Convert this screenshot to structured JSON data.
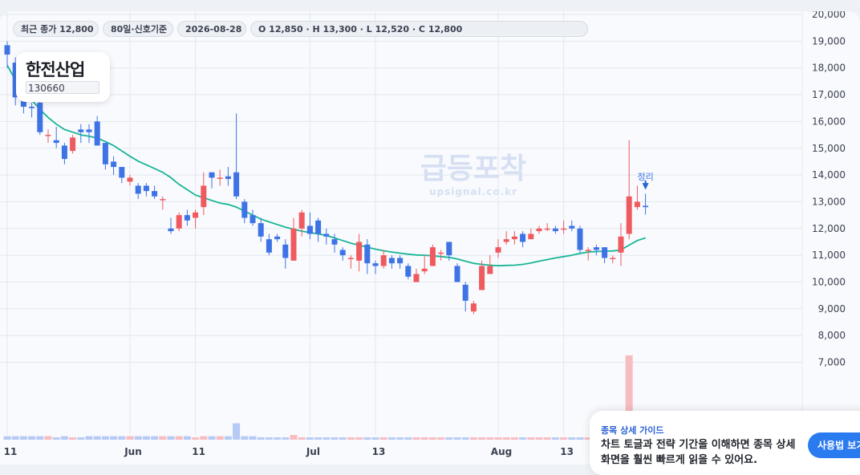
{
  "header": {
    "last_close": "최근 종가 12,800",
    "signal_basis": "80일·신호기준",
    "date": "2026-08-28",
    "ohlc": "O 12,850 · H 13,300 · L 12,520 · C 12,800"
  },
  "stock": {
    "name": "한전산업",
    "code": "130660"
  },
  "watermark": {
    "brand": "급등포착",
    "url": "upsignal.co.kr"
  },
  "annotation": {
    "label": "정리"
  },
  "guide": {
    "title": "종목 상세 가이드",
    "body_line1": "차트 토글과 전략 기간을 이해하면 종목 상세",
    "body_line2": "화면을 훨씬 빠르게 읽을 수 있어요.",
    "button_label": "사용법 보기"
  },
  "colors": {
    "up": "#ef5a5f",
    "down": "#3e73e6",
    "ma": "#19b596",
    "accent": "#2b7bf0"
  },
  "chart_data": {
    "type": "candlestick",
    "x_tick_labels": [
      {
        "index": 0,
        "label": "11"
      },
      {
        "index": 15,
        "label": "Jun"
      },
      {
        "index": 23,
        "label": "11"
      },
      {
        "index": 37,
        "label": "Jul"
      },
      {
        "index": 45,
        "label": "13"
      },
      {
        "index": 60,
        "label": "Aug"
      },
      {
        "index": 68,
        "label": "13"
      }
    ],
    "y_tick_labels": [
      "7,000",
      "8,000",
      "9,000",
      "10,000",
      "11,000",
      "12,000",
      "13,000",
      "14,000",
      "15,000",
      "16,000",
      "17,000",
      "18,000",
      "19,000",
      "20,000"
    ],
    "y_ticks": [
      7000,
      8000,
      9000,
      10000,
      11000,
      12000,
      13000,
      14000,
      15000,
      16000,
      17000,
      18000,
      19000,
      20000
    ],
    "ylim": [
      6200,
      20400
    ],
    "candles": [
      [
        18850,
        18500,
        19000,
        18000
      ],
      [
        18200,
        16900,
        18400,
        16600
      ],
      [
        16950,
        16550,
        17000,
        16300
      ],
      [
        16550,
        16500,
        16700,
        16150
      ],
      [
        16700,
        15600,
        16900,
        15500
      ],
      [
        15500,
        15500,
        15700,
        15200
      ],
      [
        15300,
        15200,
        15800,
        15000
      ],
      [
        15100,
        14600,
        15200,
        14400
      ],
      [
        14900,
        15400,
        15500,
        14800
      ],
      [
        15700,
        15600,
        15900,
        15200
      ],
      [
        15700,
        15600,
        15900,
        15200
      ],
      [
        16000,
        15100,
        16200,
        15100
      ],
      [
        15200,
        14400,
        15200,
        14200
      ],
      [
        14500,
        14300,
        14700,
        14000
      ],
      [
        14300,
        13900,
        14300,
        13700
      ],
      [
        13750,
        13900,
        14000,
        13600
      ],
      [
        13600,
        13300,
        13700,
        13100
      ],
      [
        13600,
        13400,
        13700,
        13200
      ],
      [
        13400,
        13200,
        13600,
        13100
      ],
      [
        13100,
        13100,
        13200,
        12700
      ],
      [
        12000,
        11900,
        12400,
        11800
      ],
      [
        12000,
        12500,
        12600,
        11900
      ],
      [
        12500,
        12300,
        12700,
        12100
      ],
      [
        12400,
        12600,
        12700,
        12000
      ],
      [
        12800,
        13600,
        14100,
        12500
      ],
      [
        14100,
        13900,
        14100,
        13500
      ],
      [
        13900,
        13900,
        14200,
        13600
      ],
      [
        13950,
        13850,
        14300,
        13600
      ],
      [
        14100,
        13200,
        16300,
        13100
      ],
      [
        13000,
        12400,
        13100,
        12200
      ],
      [
        12500,
        12200,
        12700,
        12100
      ],
      [
        12200,
        11700,
        12400,
        11500
      ],
      [
        11600,
        11100,
        11800,
        11000
      ],
      [
        11700,
        11600,
        11800,
        11500
      ],
      [
        11400,
        10900,
        11600,
        10500
      ],
      [
        10800,
        12000,
        12400,
        10800
      ],
      [
        12000,
        12600,
        12700,
        11700
      ],
      [
        12100,
        11800,
        12600,
        11600
      ],
      [
        12300,
        11800,
        12400,
        11500
      ],
      [
        11800,
        11700,
        12000,
        11400
      ],
      [
        11600,
        11400,
        11800,
        11100
      ],
      [
        11200,
        11000,
        11300,
        10800
      ],
      [
        10900,
        10900,
        11000,
        10500
      ],
      [
        10800,
        11500,
        11800,
        10400
      ],
      [
        11400,
        10700,
        11600,
        10300
      ],
      [
        10700,
        10600,
        10800,
        10300
      ],
      [
        10600,
        11000,
        11200,
        10500
      ],
      [
        10900,
        10700,
        11000,
        10500
      ],
      [
        10900,
        10700,
        11000,
        10500
      ],
      [
        10600,
        10200,
        10700,
        10100
      ],
      [
        10000,
        10300,
        10500,
        10000
      ],
      [
        10400,
        10500,
        11000,
        10300
      ],
      [
        10600,
        11300,
        11400,
        10600
      ],
      [
        11100,
        11100,
        11200,
        10800
      ],
      [
        11500,
        11000,
        11500,
        10800
      ],
      [
        10600,
        10000,
        10700,
        10000
      ],
      [
        9900,
        9300,
        10000,
        8900
      ],
      [
        8900,
        9200,
        9300,
        8800
      ],
      [
        9700,
        10600,
        10800,
        9700
      ],
      [
        10300,
        10600,
        11000,
        10300
      ],
      [
        11100,
        11300,
        11600,
        10900
      ],
      [
        11500,
        11600,
        11900,
        11400
      ],
      [
        11600,
        11700,
        11900,
        11400
      ],
      [
        11800,
        11500,
        11900,
        11300
      ],
      [
        11600,
        11800,
        12000,
        11600
      ],
      [
        11900,
        12000,
        12100,
        11800
      ],
      [
        12000,
        12000,
        12200,
        11900
      ],
      [
        12000,
        11900,
        12100,
        11800
      ],
      [
        12000,
        12000,
        12300,
        11800
      ],
      [
        12100,
        12000,
        12300,
        11900
      ],
      [
        12000,
        11200,
        12100,
        11100
      ],
      [
        11200,
        11200,
        11300,
        10800
      ],
      [
        11300,
        11200,
        11400,
        11000
      ],
      [
        11300,
        10900,
        11300,
        10700
      ],
      [
        10900,
        10900,
        11000,
        10700
      ],
      [
        11100,
        11700,
        12200,
        10600
      ],
      [
        11800,
        13200,
        15300,
        11600
      ],
      [
        12800,
        13000,
        13600,
        12700
      ],
      [
        12850,
        12800,
        13300,
        12520
      ]
    ],
    "volume": [
      3,
      3,
      3,
      3,
      3,
      3,
      2,
      3,
      2,
      2,
      3,
      3,
      3,
      3,
      3,
      3,
      3,
      3,
      3,
      3,
      3,
      3,
      3,
      2,
      3,
      3,
      3,
      3,
      14,
      3,
      3,
      2,
      2,
      2,
      2,
      4,
      2,
      2,
      2,
      2,
      2,
      2,
      2,
      2,
      2,
      2,
      2,
      2,
      2,
      2,
      2,
      2,
      2,
      2,
      2,
      2,
      2,
      2,
      2,
      2,
      2,
      2,
      2,
      2,
      2,
      2,
      2,
      2,
      2,
      2,
      2,
      2,
      2,
      2,
      2,
      2,
      72,
      4,
      3
    ],
    "ma": [
      18100,
      17550,
      17100,
      16800,
      16450,
      16150,
      15900,
      15700,
      15600,
      15500,
      15450,
      15380,
      15250,
      15100,
      14900,
      14700,
      14520,
      14380,
      14240,
      14100,
      13900,
      13650,
      13450,
      13250,
      13150,
      13050,
      12950,
      12900,
      12800,
      12650,
      12500,
      12350,
      12250,
      12150,
      12050,
      11970,
      11900,
      11850,
      11800,
      11740,
      11650,
      11550,
      11450,
      11380,
      11300,
      11230,
      11170,
      11120,
      11080,
      11040,
      11010,
      11000,
      10980,
      10950,
      10920,
      10860,
      10780,
      10700,
      10660,
      10630,
      10610,
      10620,
      10630,
      10660,
      10710,
      10780,
      10840,
      10900,
      10950,
      11000,
      11070,
      11120,
      11140,
      11150,
      11160,
      11200,
      11380,
      11550,
      11650
    ],
    "series": [
      {
        "name": "",
        "type": "candlestick"
      },
      {
        "name": "",
        "type": "moving-average"
      },
      {
        "name": "",
        "type": "volume"
      }
    ]
  }
}
